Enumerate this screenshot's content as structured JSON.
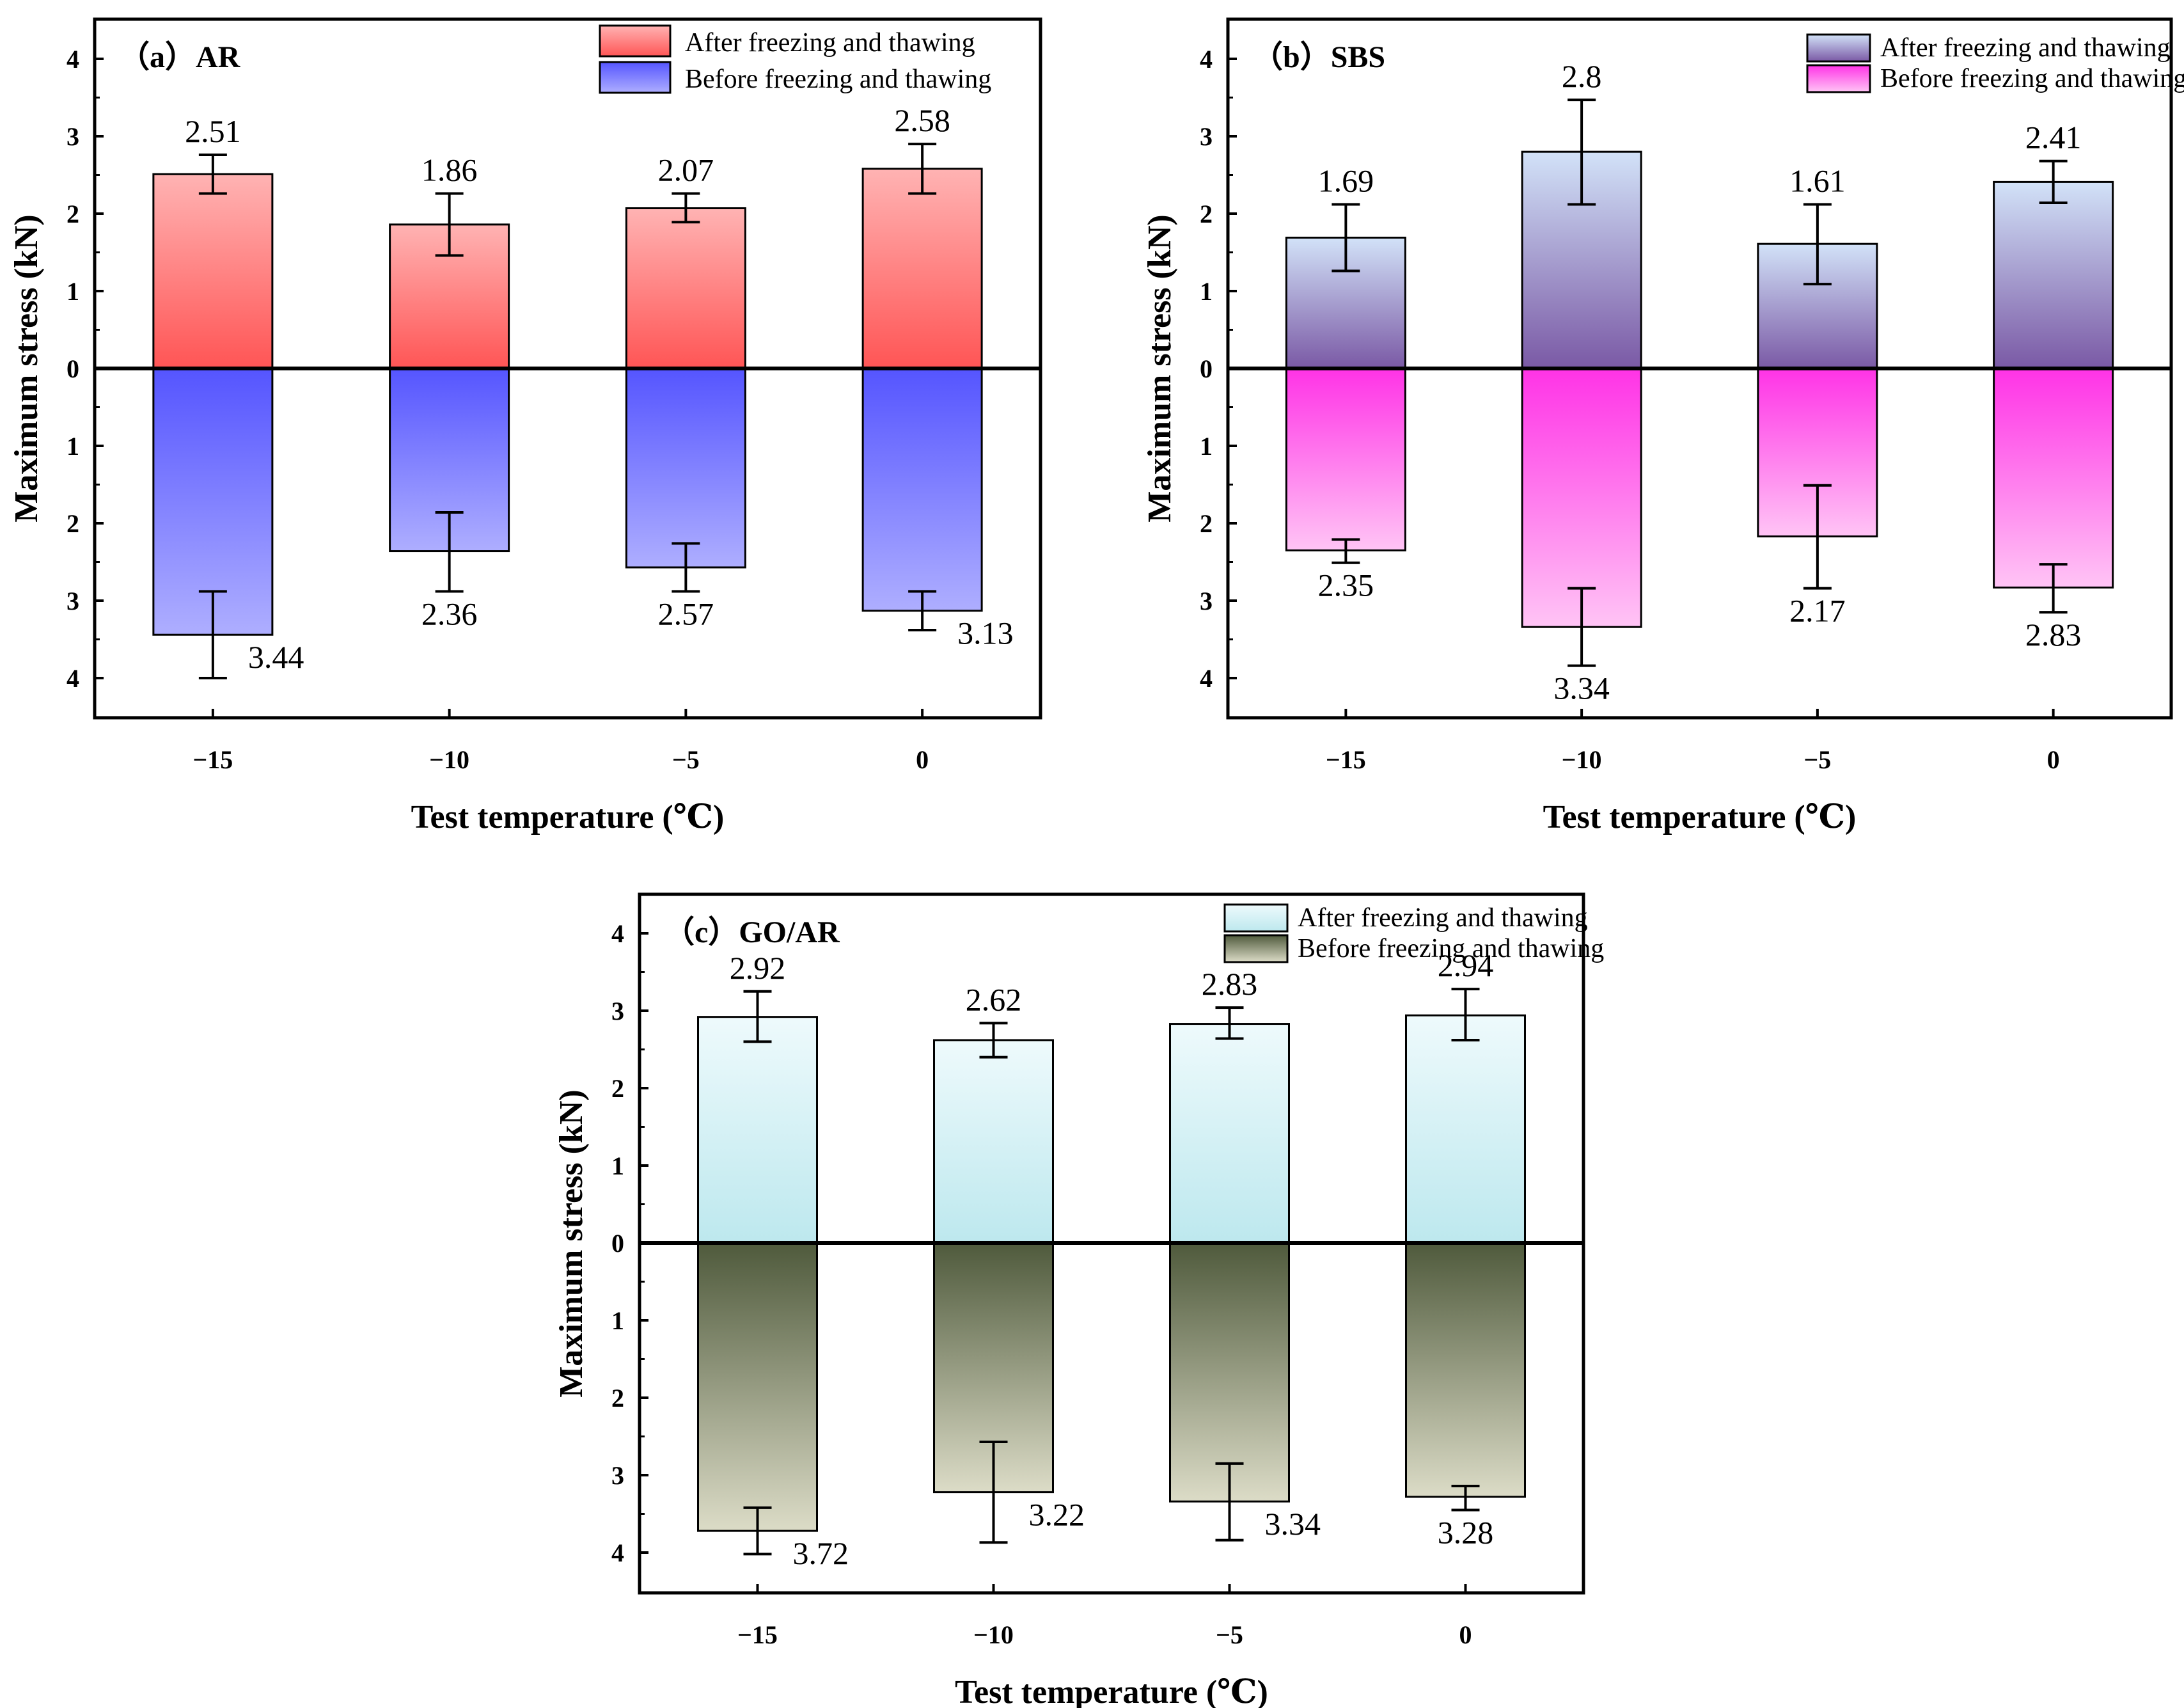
{
  "figure": {
    "panels": [
      "a",
      "b",
      "c"
    ]
  },
  "chart_data": [
    {
      "type": "bar",
      "id": "a",
      "title": "（a）AR",
      "xlabel": "Test temperature (℃)",
      "ylabel": "Maximum stress (kN)",
      "categories": [
        "−15",
        "−10",
        "−5",
        "0"
      ],
      "ylim_up": [
        0,
        4
      ],
      "ylim_down": [
        0,
        4
      ],
      "yticks": [
        "0",
        "1",
        "2",
        "3",
        "4"
      ],
      "series": [
        {
          "name": "After freezing and thawing",
          "direction": "up",
          "values": [
            2.51,
            1.86,
            2.07,
            2.58
          ],
          "error_low": [
            2.26,
            1.46,
            1.89,
            2.26
          ],
          "error_high": [
            2.76,
            2.26,
            2.26,
            2.9
          ],
          "color_top": "#ffb3b3",
          "color_bottom": "#ff5555"
        },
        {
          "name": "Before freezing and thawing",
          "direction": "down",
          "values": [
            3.44,
            2.36,
            2.57,
            3.13
          ],
          "error_low": [
            2.88,
            1.86,
            2.26,
            2.88
          ],
          "error_high": [
            4.0,
            2.88,
            2.88,
            3.38
          ],
          "color_top": "#5555ff",
          "color_bottom": "#aeaeff"
        }
      ]
    },
    {
      "type": "bar",
      "id": "b",
      "title": "（b）SBS",
      "xlabel": "Test temperature (℃)",
      "ylabel": "Maximum stress (kN)",
      "categories": [
        "−15",
        "−10",
        "−5",
        "0"
      ],
      "ylim_up": [
        0,
        4
      ],
      "ylim_down": [
        0,
        4
      ],
      "yticks": [
        "0",
        "1",
        "2",
        "3",
        "4"
      ],
      "series": [
        {
          "name": "After freezing and thawing",
          "direction": "up",
          "values": [
            1.69,
            2.8,
            1.61,
            2.41
          ],
          "error_low": [
            1.26,
            2.12,
            1.09,
            2.14
          ],
          "error_high": [
            2.12,
            3.47,
            2.12,
            2.68
          ],
          "color_top": "#d2e2f8",
          "color_bottom": "#7a59a5"
        },
        {
          "name": "Before freezing and thawing",
          "direction": "down",
          "values": [
            2.35,
            3.34,
            2.17,
            2.83
          ],
          "error_low": [
            2.21,
            2.84,
            1.51,
            2.53
          ],
          "error_high": [
            2.51,
            3.84,
            2.84,
            3.15
          ],
          "color_top": "#ff33e6",
          "color_bottom": "#ffc4f5"
        }
      ]
    },
    {
      "type": "bar",
      "id": "c",
      "title": "（c）GO/AR",
      "xlabel": "Test temperature (℃)",
      "ylabel": "Maximum stress (kN)",
      "categories": [
        "−15",
        "−10",
        "−5",
        "0"
      ],
      "ylim_up": [
        0,
        4
      ],
      "ylim_down": [
        0,
        4
      ],
      "yticks": [
        "0",
        "1",
        "2",
        "3",
        "4"
      ],
      "series": [
        {
          "name": "After freezing and thawing",
          "direction": "up",
          "values": [
            2.92,
            2.62,
            2.83,
            2.94
          ],
          "error_low": [
            2.6,
            2.4,
            2.64,
            2.62
          ],
          "error_high": [
            3.25,
            2.84,
            3.04,
            3.28
          ],
          "color_top": "#eefafc",
          "color_bottom": "#bde8ee"
        },
        {
          "name": "Before freezing and thawing",
          "direction": "down",
          "values": [
            3.72,
            3.22,
            3.34,
            3.28
          ],
          "error_low": [
            3.42,
            2.57,
            2.85,
            3.14
          ],
          "error_high": [
            4.02,
            3.87,
            3.84,
            3.45
          ],
          "color_top": "#4f5a3c",
          "color_bottom": "#dcdcc7"
        }
      ]
    }
  ]
}
